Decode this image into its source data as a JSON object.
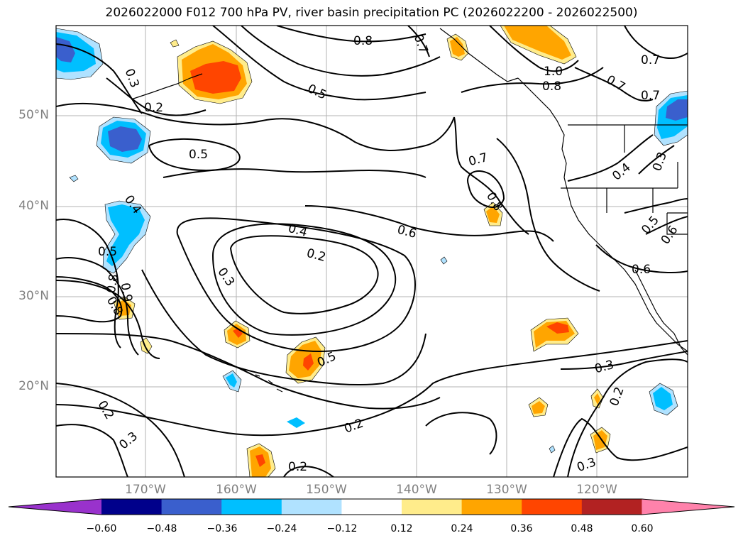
{
  "title": "2026022000 F012 700 hPa PV, river basin precipitation PC (2026022200 - 2026022500)",
  "lat_labels": [
    "50°N",
    "40°N",
    "30°N",
    "20°N"
  ],
  "lon_labels": [
    "170°W",
    "160°W",
    "150°W",
    "140°W",
    "130°W",
    "120°W"
  ],
  "contour_labels": {
    "l08a": "0.8",
    "l07a": "0.7",
    "l10": "1.0",
    "l08b": "0.8",
    "l07b": "0.7",
    "l07c": "0.7",
    "l07d": "0.7",
    "l03a": "0.3",
    "l02a": "0.2",
    "l05a": "0.5",
    "l05b": "0.5",
    "l07e": "0.7",
    "l04a": "0.4",
    "l03b": "0.3",
    "l08c": "0.8",
    "l06a": "0.6",
    "l04b": "0.4",
    "l02b": "0.2",
    "l05c": "0.5",
    "l06b": "0.6",
    "l05d": "0.5",
    "l03c": "0.3",
    "l04c": "0.4",
    "l06c": "0.6",
    "l05e": "0.5",
    "l03d": "0.3",
    "l02c": "0.2",
    "l02d": "0.2",
    "l02e": "0.2",
    "l03e": "0.3",
    "l03f": "0.3",
    "l08d": "0.8",
    "l09a": "0.9",
    "l08e": "0.8"
  },
  "colorbar": {
    "colors": [
      "#9932cc",
      "#00008b",
      "#3a5fcd",
      "#00bfff",
      "#b0e2ff",
      "#ffffff",
      "#ffec8b",
      "#ffa500",
      "#ff4500",
      "#b22222",
      "#ff82ab"
    ],
    "tick_labels": [
      "−0.60",
      "−0.48",
      "−0.36",
      "−0.24",
      "−0.12",
      "0.12",
      "0.24",
      "0.36",
      "0.48",
      "0.60"
    ]
  },
  "shading_colors": {
    "neg1": "#b0e2ff",
    "neg2": "#00bfff",
    "neg3": "#3a5fcd",
    "pos1": "#ffec8b",
    "pos2": "#ffa500",
    "pos3": "#ff4500"
  }
}
